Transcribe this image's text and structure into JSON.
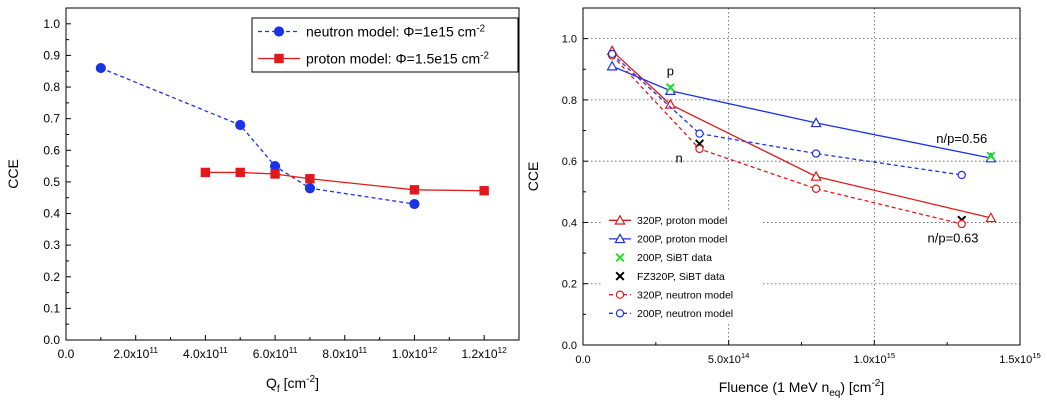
{
  "chart_data": [
    {
      "type": "line",
      "xlabel": "Q_f [cm^-2]",
      "xlabel_main": "Q",
      "xlabel_sub": "f",
      "xlabel_tail": " [cm",
      "xlabel_sup": "-2",
      "xlabel_end": "]",
      "ylabel": "CCE",
      "xlim": [
        0,
        1300000000000.0
      ],
      "ylim": [
        0,
        1.05
      ],
      "grid": false,
      "legend_position": "top-right",
      "xticks": [
        {
          "value": 0,
          "base": "0.0",
          "exp": ""
        },
        {
          "value": 200000000000.0,
          "base": "2.0x10",
          "exp": "11"
        },
        {
          "value": 400000000000.0,
          "base": "4.0x10",
          "exp": "11"
        },
        {
          "value": 600000000000.0,
          "base": "6.0x10",
          "exp": "11"
        },
        {
          "value": 800000000000.0,
          "base": "8.0x10",
          "exp": "11"
        },
        {
          "value": 1000000000000.0,
          "base": "1.0x10",
          "exp": "12"
        },
        {
          "value": 1200000000000.0,
          "base": "1.2x10",
          "exp": "12"
        }
      ],
      "yticks": [
        {
          "value": 0.0,
          "label": "0.0"
        },
        {
          "value": 0.1,
          "label": "0.1"
        },
        {
          "value": 0.2,
          "label": "0.2"
        },
        {
          "value": 0.3,
          "label": "0.3"
        },
        {
          "value": 0.4,
          "label": "0.4"
        },
        {
          "value": 0.5,
          "label": "0.5"
        },
        {
          "value": 0.6,
          "label": "0.6"
        },
        {
          "value": 0.7,
          "label": "0.7"
        },
        {
          "value": 0.8,
          "label": "0.8"
        },
        {
          "value": 0.9,
          "label": "0.9"
        },
        {
          "value": 1.0,
          "label": "1.0"
        }
      ],
      "series": [
        {
          "name": "neutron model: Φ=1e15 cm^-2",
          "legend_text": "neutron model: Φ=1e15 cm",
          "legend_sup": "-2",
          "color": "#1a33e6",
          "dash": true,
          "marker": "circle",
          "filled": true,
          "x": [
            100000000000.0,
            500000000000.0,
            600000000000.0,
            700000000000.0,
            1000000000000.0
          ],
          "y": [
            0.86,
            0.68,
            0.55,
            0.48,
            0.43
          ]
        },
        {
          "name": "proton model: Φ=1.5e15 cm^-2",
          "legend_text": "proton model: Φ=1.5e15 cm",
          "legend_sup": "-2",
          "color": "#e01a1a",
          "dash": false,
          "marker": "square",
          "filled": true,
          "x": [
            400000000000.0,
            500000000000.0,
            600000000000.0,
            700000000000.0,
            1000000000000.0,
            1200000000000.0
          ],
          "y": [
            0.53,
            0.53,
            0.525,
            0.51,
            0.475,
            0.472
          ]
        }
      ]
    },
    {
      "type": "line",
      "xlabel": "Fluence (1 MeV n_eq) [cm^-2]",
      "xlabel_main": "Fluence (1 MeV n",
      "xlabel_sub": "eq",
      "xlabel_tail": ") [cm",
      "xlabel_sup": "-2",
      "xlabel_end": "]",
      "ylabel": "CCE",
      "xlim": [
        0,
        1500000000000000.0
      ],
      "ylim": [
        0,
        1.1
      ],
      "grid": true,
      "legend_position": "bottom-left",
      "xticks": [
        {
          "value": 0,
          "base": "0.0",
          "exp": ""
        },
        {
          "value": 500000000000000.0,
          "base": "5.0x10",
          "exp": "14"
        },
        {
          "value": 1000000000000000.0,
          "base": "1.0x10",
          "exp": "15"
        },
        {
          "value": 1500000000000000.0,
          "base": "1.5x10",
          "exp": "15"
        }
      ],
      "yticks": [
        {
          "value": 0.0,
          "label": "0.0"
        },
        {
          "value": 0.2,
          "label": "0.2"
        },
        {
          "value": 0.4,
          "label": "0.4"
        },
        {
          "value": 0.6,
          "label": "0.6"
        },
        {
          "value": 0.8,
          "label": "0.8"
        },
        {
          "value": 1.0,
          "label": "1.0"
        }
      ],
      "series": [
        {
          "name": "320P,  proton model",
          "color": "#e01a1a",
          "dash": false,
          "marker": "triangle",
          "filled": false,
          "x": [
            100000000000000.0,
            300000000000000.0,
            800000000000000.0,
            1400000000000000.0
          ],
          "y": [
            0.96,
            0.785,
            0.55,
            0.415
          ]
        },
        {
          "name": "200P,  proton model",
          "color": "#1a33e6",
          "dash": false,
          "marker": "triangle",
          "filled": false,
          "x": [
            100000000000000.0,
            300000000000000.0,
            800000000000000.0,
            1400000000000000.0
          ],
          "y": [
            0.91,
            0.83,
            0.725,
            0.61
          ]
        },
        {
          "name": "200P,  SiBT data",
          "color": "#22e022",
          "dash": false,
          "marker": "x",
          "filled": false,
          "line": false,
          "x": [
            300000000000000.0,
            1400000000000000.0
          ],
          "y": [
            0.84,
            0.617
          ]
        },
        {
          "name": "FZ320P, SiBT data",
          "color": "#000000",
          "dash": false,
          "marker": "x",
          "filled": false,
          "line": false,
          "x": [
            400000000000000.0,
            1300000000000000.0
          ],
          "y": [
            0.657,
            0.408
          ]
        },
        {
          "name": "320P, neutron model",
          "color": "#e01a1a",
          "dash": true,
          "marker": "circle",
          "filled": false,
          "x": [
            100000000000000.0,
            400000000000000.0,
            800000000000000.0,
            1300000000000000.0
          ],
          "y": [
            0.945,
            0.64,
            0.51,
            0.395
          ]
        },
        {
          "name": "200P, neutron model",
          "color": "#1a33e6",
          "dash": true,
          "marker": "circle",
          "filled": false,
          "x": [
            100000000000000.0,
            400000000000000.0,
            800000000000000.0,
            1300000000000000.0
          ],
          "y": [
            0.95,
            0.69,
            0.625,
            0.555
          ]
        }
      ],
      "annotations": [
        {
          "text": "p",
          "x": 300000000000000.0,
          "y": 0.88
        },
        {
          "text": "n",
          "x": 330000000000000.0,
          "y": 0.595
        },
        {
          "text": "n/p=0.56",
          "x": 1300000000000000.0,
          "y": 0.66
        },
        {
          "text": "n/p=0.63",
          "x": 1270000000000000.0,
          "y": 0.335
        }
      ]
    }
  ]
}
